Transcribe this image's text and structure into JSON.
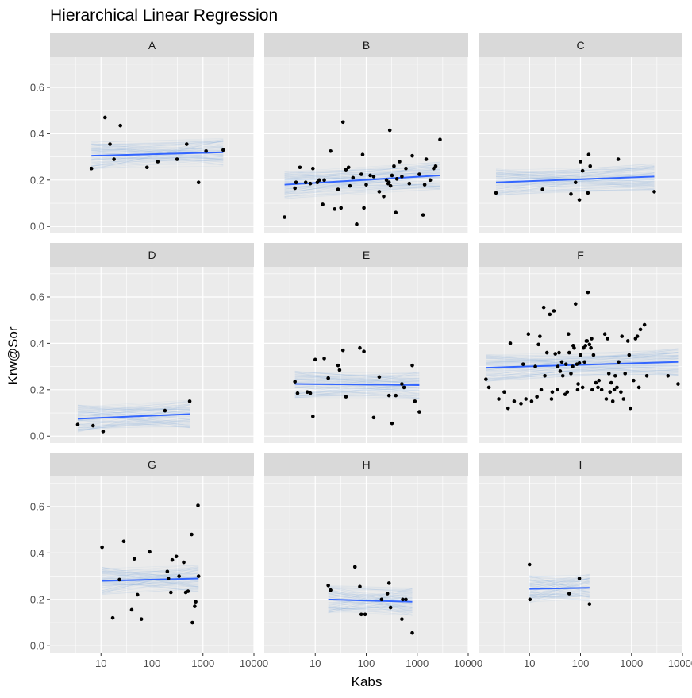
{
  "chart_data": {
    "type": "scatter",
    "title": "Hierarchical Linear Regression",
    "xlabel": "Kabs",
    "ylabel": "Krw@Sor",
    "x_scale": "log10",
    "xlim": [
      1,
      10000
    ],
    "ylim": [
      -0.03,
      0.73
    ],
    "x_ticks": [
      10,
      100,
      1000,
      10000
    ],
    "x_tick_labels": [
      "10",
      "100",
      "1000",
      "10000"
    ],
    "y_ticks": [
      0.0,
      0.2,
      0.4,
      0.6
    ],
    "y_tick_labels": [
      "0.0",
      "0.2",
      "0.4",
      "0.6"
    ],
    "grid": true,
    "colors": {
      "panel_bg": "#ebebeb",
      "strip_bg": "#d9d9d9",
      "grid": "#ffffff",
      "points": "#000000",
      "fit_line": "#3366ff",
      "posterior_lines": "#6f9ad6"
    },
    "panels": [
      {
        "label": "A",
        "points": [
          [
            6.5,
            0.25
          ],
          [
            12,
            0.47
          ],
          [
            15,
            0.355
          ],
          [
            18,
            0.29
          ],
          [
            24,
            0.435
          ],
          [
            80,
            0.255
          ],
          [
            130,
            0.28
          ],
          [
            310,
            0.29
          ],
          [
            480,
            0.355
          ],
          [
            820,
            0.19
          ],
          [
            1150,
            0.325
          ],
          [
            2500,
            0.33
          ]
        ],
        "fit": {
          "x": [
            6.5,
            2500
          ],
          "y": [
            0.305,
            0.32
          ]
        }
      },
      {
        "label": "B",
        "points": [
          [
            2.5,
            0.04
          ],
          [
            4,
            0.165
          ],
          [
            4.2,
            0.19
          ],
          [
            5,
            0.255
          ],
          [
            6.5,
            0.19
          ],
          [
            8,
            0.185
          ],
          [
            9,
            0.25
          ],
          [
            11,
            0.19
          ],
          [
            12,
            0.2
          ],
          [
            14,
            0.095
          ],
          [
            15,
            0.2
          ],
          [
            20,
            0.325
          ],
          [
            24,
            0.075
          ],
          [
            28,
            0.16
          ],
          [
            32,
            0.08
          ],
          [
            35,
            0.45
          ],
          [
            40,
            0.245
          ],
          [
            45,
            0.255
          ],
          [
            48,
            0.175
          ],
          [
            55,
            0.21
          ],
          [
            65,
            0.01
          ],
          [
            80,
            0.225
          ],
          [
            85,
            0.31
          ],
          [
            90,
            0.08
          ],
          [
            100,
            0.18
          ],
          [
            120,
            0.22
          ],
          [
            140,
            0.215
          ],
          [
            180,
            0.15
          ],
          [
            220,
            0.13
          ],
          [
            250,
            0.2
          ],
          [
            270,
            0.185
          ],
          [
            280,
            0.19
          ],
          [
            290,
            0.415
          ],
          [
            300,
            0.175
          ],
          [
            320,
            0.22
          ],
          [
            350,
            0.26
          ],
          [
            380,
            0.06
          ],
          [
            400,
            0.205
          ],
          [
            450,
            0.28
          ],
          [
            500,
            0.215
          ],
          [
            600,
            0.25
          ],
          [
            700,
            0.185
          ],
          [
            800,
            0.305
          ],
          [
            1100,
            0.225
          ],
          [
            1300,
            0.05
          ],
          [
            1400,
            0.18
          ],
          [
            1500,
            0.29
          ],
          [
            1800,
            0.2
          ],
          [
            2100,
            0.25
          ],
          [
            2300,
            0.26
          ],
          [
            2800,
            0.375
          ]
        ],
        "fit": {
          "x": [
            2.5,
            2800
          ],
          "y": [
            0.18,
            0.22
          ]
        }
      },
      {
        "label": "C",
        "points": [
          [
            2.2,
            0.145
          ],
          [
            18,
            0.16
          ],
          [
            65,
            0.14
          ],
          [
            80,
            0.19
          ],
          [
            95,
            0.115
          ],
          [
            100,
            0.28
          ],
          [
            110,
            0.24
          ],
          [
            140,
            0.145
          ],
          [
            145,
            0.31
          ],
          [
            155,
            0.26
          ],
          [
            550,
            0.29
          ],
          [
            2800,
            0.15
          ]
        ],
        "fit": {
          "x": [
            2.2,
            2800
          ],
          "y": [
            0.19,
            0.215
          ]
        }
      },
      {
        "label": "D",
        "points": [
          [
            3.5,
            0.05
          ],
          [
            7,
            0.045
          ],
          [
            11,
            0.02
          ],
          [
            180,
            0.11
          ],
          [
            550,
            0.15
          ]
        ],
        "fit": {
          "x": [
            3.5,
            550
          ],
          "y": [
            0.075,
            0.095
          ]
        }
      },
      {
        "label": "E",
        "points": [
          [
            4,
            0.235
          ],
          [
            4.5,
            0.185
          ],
          [
            7,
            0.19
          ],
          [
            8,
            0.185
          ],
          [
            9,
            0.085
          ],
          [
            10,
            0.33
          ],
          [
            15,
            0.335
          ],
          [
            18,
            0.25
          ],
          [
            28,
            0.305
          ],
          [
            30,
            0.285
          ],
          [
            35,
            0.37
          ],
          [
            40,
            0.17
          ],
          [
            75,
            0.38
          ],
          [
            90,
            0.365
          ],
          [
            140,
            0.08
          ],
          [
            180,
            0.255
          ],
          [
            280,
            0.175
          ],
          [
            320,
            0.055
          ],
          [
            380,
            0.175
          ],
          [
            500,
            0.225
          ],
          [
            550,
            0.21
          ],
          [
            800,
            0.305
          ],
          [
            900,
            0.15
          ],
          [
            1100,
            0.105
          ]
        ],
        "fit": {
          "x": [
            4,
            1100
          ],
          "y": [
            0.225,
            0.22
          ]
        }
      },
      {
        "label": "F",
        "points": [
          [
            1.4,
            0.245
          ],
          [
            1.6,
            0.21
          ],
          [
            2.5,
            0.16
          ],
          [
            3.2,
            0.19
          ],
          [
            3.8,
            0.12
          ],
          [
            4.2,
            0.4
          ],
          [
            5,
            0.15
          ],
          [
            6.8,
            0.14
          ],
          [
            7.5,
            0.31
          ],
          [
            8.5,
            0.16
          ],
          [
            9.5,
            0.44
          ],
          [
            11,
            0.15
          ],
          [
            13,
            0.3
          ],
          [
            14,
            0.17
          ],
          [
            15,
            0.395
          ],
          [
            16,
            0.43
          ],
          [
            17,
            0.2
          ],
          [
            19,
            0.555
          ],
          [
            20,
            0.26
          ],
          [
            22,
            0.36
          ],
          [
            25,
            0.525
          ],
          [
            27,
            0.16
          ],
          [
            28,
            0.19
          ],
          [
            30,
            0.54
          ],
          [
            32,
            0.355
          ],
          [
            35,
            0.2
          ],
          [
            36,
            0.3
          ],
          [
            38,
            0.36
          ],
          [
            40,
            0.28
          ],
          [
            43,
            0.32
          ],
          [
            45,
            0.26
          ],
          [
            50,
            0.18
          ],
          [
            52,
            0.31
          ],
          [
            55,
            0.19
          ],
          [
            58,
            0.44
          ],
          [
            60,
            0.36
          ],
          [
            65,
            0.27
          ],
          [
            70,
            0.3
          ],
          [
            72,
            0.39
          ],
          [
            75,
            0.38
          ],
          [
            80,
            0.57
          ],
          [
            85,
            0.31
          ],
          [
            88,
            0.2
          ],
          [
            90,
            0.225
          ],
          [
            95,
            0.315
          ],
          [
            100,
            0.35
          ],
          [
            110,
            0.21
          ],
          [
            115,
            0.38
          ],
          [
            120,
            0.32
          ],
          [
            125,
            0.39
          ],
          [
            130,
            0.41
          ],
          [
            135,
            0.41
          ],
          [
            140,
            0.62
          ],
          [
            150,
            0.395
          ],
          [
            160,
            0.38
          ],
          [
            165,
            0.42
          ],
          [
            170,
            0.2
          ],
          [
            180,
            0.35
          ],
          [
            200,
            0.23
          ],
          [
            220,
            0.21
          ],
          [
            230,
            0.24
          ],
          [
            260,
            0.2
          ],
          [
            300,
            0.44
          ],
          [
            320,
            0.16
          ],
          [
            340,
            0.42
          ],
          [
            360,
            0.27
          ],
          [
            380,
            0.19
          ],
          [
            400,
            0.23
          ],
          [
            430,
            0.15
          ],
          [
            460,
            0.2
          ],
          [
            480,
            0.26
          ],
          [
            520,
            0.21
          ],
          [
            560,
            0.32
          ],
          [
            620,
            0.19
          ],
          [
            650,
            0.43
          ],
          [
            700,
            0.16
          ],
          [
            750,
            0.27
          ],
          [
            850,
            0.41
          ],
          [
            900,
            0.35
          ],
          [
            950,
            0.12
          ],
          [
            1100,
            0.24
          ],
          [
            1200,
            0.42
          ],
          [
            1300,
            0.43
          ],
          [
            1400,
            0.21
          ],
          [
            1500,
            0.46
          ],
          [
            1800,
            0.48
          ],
          [
            2000,
            0.26
          ],
          [
            5200,
            0.26
          ],
          [
            8200,
            0.225
          ]
        ],
        "fit": {
          "x": [
            1.4,
            8200
          ],
          "y": [
            0.295,
            0.32
          ]
        }
      },
      {
        "label": "G",
        "points": [
          [
            10.5,
            0.425
          ],
          [
            17,
            0.12
          ],
          [
            23,
            0.285
          ],
          [
            28,
            0.45
          ],
          [
            40,
            0.155
          ],
          [
            45,
            0.375
          ],
          [
            52,
            0.22
          ],
          [
            62,
            0.115
          ],
          [
            90,
            0.405
          ],
          [
            200,
            0.32
          ],
          [
            210,
            0.29
          ],
          [
            235,
            0.23
          ],
          [
            250,
            0.37
          ],
          [
            300,
            0.385
          ],
          [
            340,
            0.3
          ],
          [
            420,
            0.36
          ],
          [
            460,
            0.23
          ],
          [
            510,
            0.235
          ],
          [
            600,
            0.48
          ],
          [
            620,
            0.1
          ],
          [
            690,
            0.17
          ],
          [
            720,
            0.19
          ],
          [
            800,
            0.605
          ],
          [
            820,
            0.3
          ]
        ],
        "fit": {
          "x": [
            10.5,
            820
          ],
          "y": [
            0.28,
            0.29
          ]
        }
      },
      {
        "label": "H",
        "points": [
          [
            18,
            0.26
          ],
          [
            20,
            0.24
          ],
          [
            60,
            0.34
          ],
          [
            75,
            0.255
          ],
          [
            80,
            0.135
          ],
          [
            95,
            0.135
          ],
          [
            200,
            0.2
          ],
          [
            260,
            0.225
          ],
          [
            280,
            0.27
          ],
          [
            300,
            0.165
          ],
          [
            500,
            0.115
          ],
          [
            520,
            0.2
          ],
          [
            600,
            0.2
          ],
          [
            800,
            0.055
          ]
        ],
        "fit": {
          "x": [
            18,
            800
          ],
          "y": [
            0.2,
            0.19
          ]
        }
      },
      {
        "label": "I",
        "points": [
          [
            10,
            0.35
          ],
          [
            10.2,
            0.2
          ],
          [
            60,
            0.225
          ],
          [
            95,
            0.29
          ],
          [
            150,
            0.18
          ]
        ],
        "fit": {
          "x": [
            10,
            150
          ],
          "y": [
            0.245,
            0.25
          ]
        }
      }
    ]
  }
}
